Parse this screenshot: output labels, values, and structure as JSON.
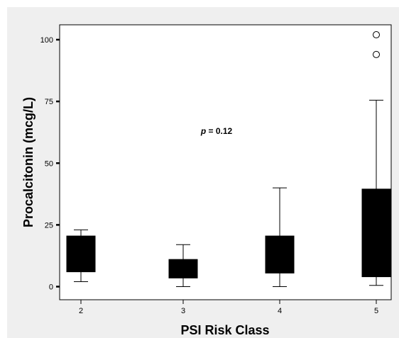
{
  "chart_data": {
    "type": "box",
    "xlabel": "PSI Risk Class",
    "ylabel": "Procalcitonin (mcg/L)",
    "categories": [
      "2",
      "3",
      "4",
      "5"
    ],
    "ylim": [
      -5,
      110
    ],
    "yticks": [
      0,
      25,
      50,
      75,
      100
    ],
    "boxes": [
      {
        "category": "2",
        "whisker_low": 2,
        "q1": 6,
        "q3": 20.5,
        "whisker_high": 23
      },
      {
        "category": "3",
        "whisker_low": 0,
        "q1": 3.5,
        "q3": 11,
        "whisker_high": 17
      },
      {
        "category": "4",
        "whisker_low": 0,
        "q1": 5.5,
        "q3": 20.5,
        "whisker_high": 40
      },
      {
        "category": "5",
        "whisker_low": 0.5,
        "q1": 4,
        "q3": 39.5,
        "whisker_high": 75.5
      }
    ],
    "outliers": [
      {
        "category": "5",
        "value": 94
      },
      {
        "category": "5",
        "value": 102
      }
    ],
    "annotation": {
      "prefix": "p",
      "text": " = 0.12"
    },
    "grid": false,
    "colors": {
      "box_fill": "#000000",
      "panel_bg": "#ffffff",
      "outer_bg": "#efefef"
    }
  }
}
